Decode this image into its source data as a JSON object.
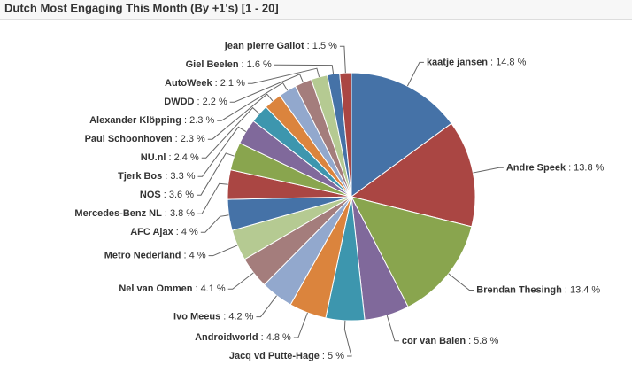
{
  "chart_data": {
    "type": "pie",
    "title": "Dutch Most Engaging This Month (By +1's) [1 - 20]",
    "categories": [
      "kaatje jansen",
      "Andre Speek",
      "Brendan Thesingh",
      "cor van Balen",
      "Jacq vd Putte-Hage",
      "Androidworld",
      "Ivo Meeus",
      "Nel van Ommen",
      "Metro Nederland",
      "AFC Ajax",
      "Mercedes-Benz NL",
      "NOS",
      "Tjerk Bos",
      "NU.nl",
      "Paul Schoonhoven",
      "Alexander Klöpping",
      "DWDD",
      "AutoWeek",
      "Giel Beelen",
      "jean pierre Gallot"
    ],
    "values": [
      14.8,
      13.8,
      13.4,
      5.8,
      5,
      4.8,
      4.2,
      4.1,
      4,
      4,
      3.8,
      3.6,
      3.3,
      2.4,
      2.3,
      2.3,
      2.2,
      2.1,
      1.6,
      1.5
    ],
    "value_labels": [
      ": 14.8 %",
      ": 13.8 %",
      ": 13.4 %",
      ": 5.8 %",
      ": 5 %",
      ": 4.8 %",
      ": 4.2 %",
      ": 4.1 %",
      ": 4 %",
      ": 4 %",
      ": 3.8 %",
      ": 3.6 %",
      ": 3.3 %",
      ": 2.4 %",
      ": 2.3 %",
      ": 2.3 %",
      ": 2.2 %",
      ": 2.1 %",
      ": 1.6 %",
      ": 1.5 %"
    ],
    "colors": [
      "#4572A7",
      "#AA4643",
      "#89A54E",
      "#80699B",
      "#3D96AE",
      "#DB843D",
      "#92A8CD",
      "#A47D7C",
      "#B5CA92"
    ]
  }
}
